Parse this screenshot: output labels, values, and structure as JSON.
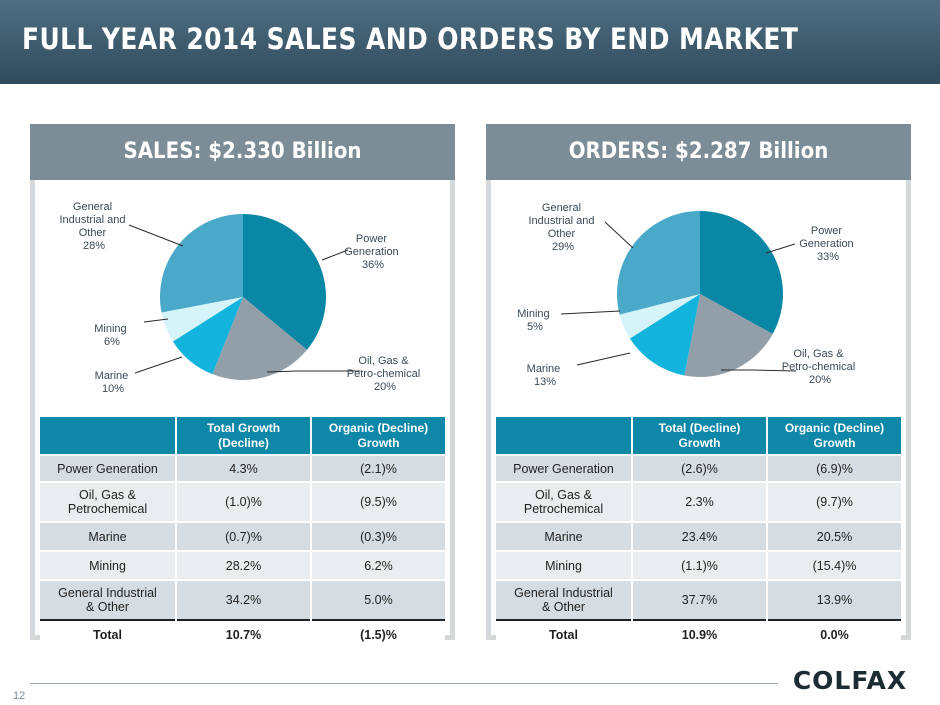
{
  "header": {
    "title": "FULL YEAR 2014 SALES AND ORDERS BY END MARKET"
  },
  "sales": {
    "title": "SALES: $2.330 Billion",
    "pie": [
      {
        "name": "Power Generation",
        "line1": "Power",
        "line2": "Generation",
        "pct": 36,
        "label": "36%",
        "color": "#0b87a6"
      },
      {
        "name": "Oil, Gas & Petro-chemical",
        "line1": "Oil, Gas &",
        "line2": "Petro-chemical",
        "pct": 20,
        "label": "20%",
        "color": "#939fa8"
      },
      {
        "name": "Marine",
        "line1": "Marine",
        "line2": "",
        "pct": 10,
        "label": "10%",
        "color": "#12b3dc"
      },
      {
        "name": "Mining",
        "line1": "Mining",
        "line2": "",
        "pct": 6,
        "label": "6%",
        "color": "#d5f4fa"
      },
      {
        "name": "General Industrial and Other",
        "line1": "General",
        "line2": "Industrial and",
        "line3": "Other",
        "pct": 28,
        "label": "28%",
        "color": "#4aa9c8"
      }
    ],
    "table": {
      "headers": [
        "",
        "Total Growth (Decline)",
        "Organic (Decline) Growth"
      ],
      "rows": [
        {
          "name": "Power Generation",
          "total": "4.3%",
          "organic": "(2.1)%"
        },
        {
          "name": "Oil, Gas & Petrochemical",
          "total": "(1.0)%",
          "organic": "(9.5)%"
        },
        {
          "name": "Marine",
          "total": "(0.7)%",
          "organic": "(0.3)%"
        },
        {
          "name": "Mining",
          "total": "28.2%",
          "organic": "6.2%"
        },
        {
          "name": "General Industrial & Other",
          "total": "34.2%",
          "organic": "5.0%"
        }
      ],
      "total": {
        "name": "Total",
        "total": "10.7%",
        "organic": "(1.5)%"
      }
    }
  },
  "orders": {
    "title": "ORDERS: $2.287 Billion",
    "pie": [
      {
        "name": "Power Generation",
        "line1": "Power",
        "line2": "Generation",
        "pct": 33,
        "label": "33%",
        "color": "#0b87a6"
      },
      {
        "name": "Oil, Gas & Petro-chemical",
        "line1": "Oil, Gas &",
        "line2": "Petro-chemical",
        "pct": 20,
        "label": "20%",
        "color": "#939fa8"
      },
      {
        "name": "Marine",
        "line1": "Marine",
        "line2": "",
        "pct": 13,
        "label": "13%",
        "color": "#12b3dc"
      },
      {
        "name": "Mining",
        "line1": "Mining",
        "line2": "",
        "pct": 5,
        "label": "5%",
        "color": "#d5f4fa"
      },
      {
        "name": "General Industrial and Other",
        "line1": "General",
        "line2": "Industrial and",
        "line3": "Other",
        "pct": 29,
        "label": "29%",
        "color": "#4aa9c8"
      }
    ],
    "table": {
      "headers": [
        "",
        "Total (Decline) Growth",
        "Organic (Decline) Growth"
      ],
      "rows": [
        {
          "name": "Power Generation",
          "total": "(2.6)%",
          "organic": "(6.9)%"
        },
        {
          "name": "Oil, Gas & Petrochemical",
          "total": "2.3%",
          "organic": "(9.7)%"
        },
        {
          "name": "Marine",
          "total": "23.4%",
          "organic": "20.5%"
        },
        {
          "name": "Mining",
          "total": "(1.1)%",
          "organic": "(15.4)%"
        },
        {
          "name": "General Industrial & Other",
          "total": "37.7%",
          "organic": "13.9%"
        }
      ],
      "total": {
        "name": "Total",
        "total": "10.9%",
        "organic": "0.0%"
      }
    }
  },
  "footer": {
    "page": "12",
    "logo": "COLFAX"
  }
}
